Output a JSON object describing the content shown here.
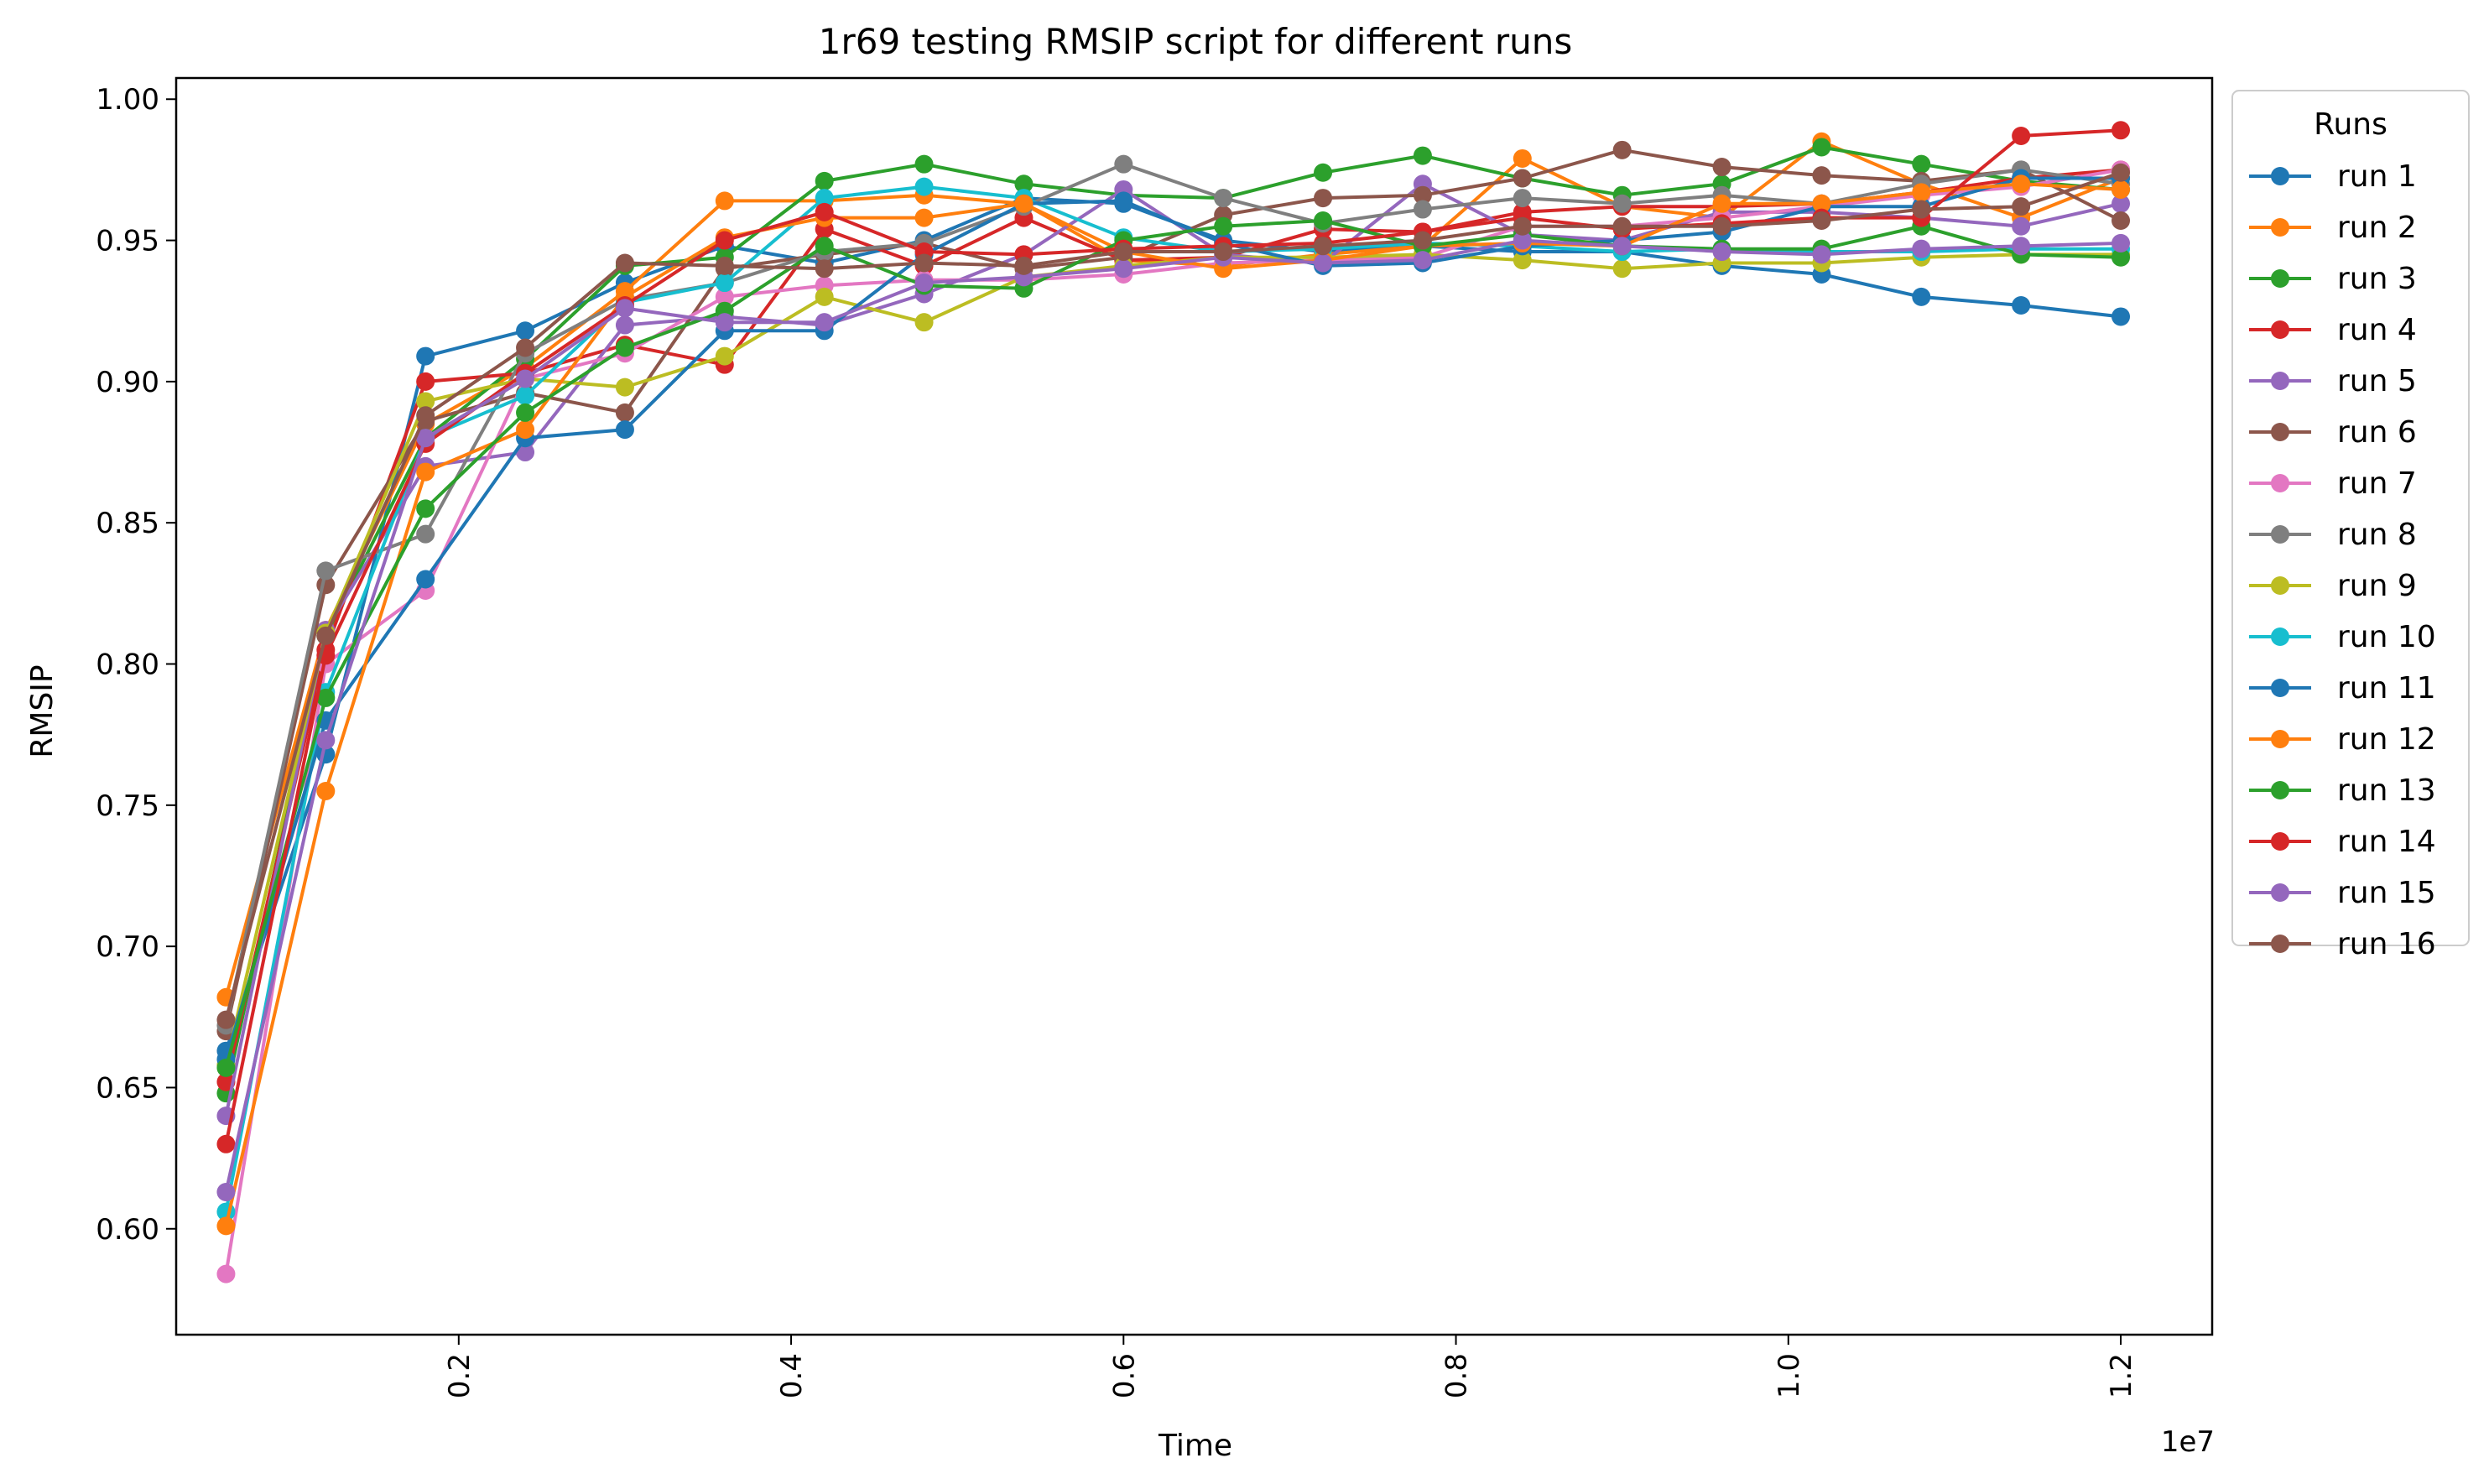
{
  "chart_data": {
    "type": "line",
    "title": "1r69 testing RMSIP script for different runs",
    "xlabel": "Time",
    "ylabel": "RMSIP",
    "x_offset_text": "1e7",
    "xlim": [
      0.03,
      1.255
    ],
    "ylim": [
      0.5625,
      1.0075
    ],
    "x_ticks": [
      0.2,
      0.4,
      0.6,
      0.8,
      1.0,
      1.2
    ],
    "x_tick_labels": [
      "0.2",
      "0.4",
      "0.6",
      "0.8",
      "1.0",
      "1.2"
    ],
    "y_ticks": [
      0.6,
      0.65,
      0.7,
      0.75,
      0.8,
      0.85,
      0.9,
      0.95,
      1.0
    ],
    "y_tick_labels": [
      "0.60",
      "0.65",
      "0.70",
      "0.75",
      "0.80",
      "0.85",
      "0.90",
      "0.95",
      "1.00"
    ],
    "x_tick_rotation": "vertical",
    "grid": false,
    "markers": "circle",
    "legend": {
      "title": "Runs",
      "placement": "outside-right"
    },
    "x": [
      0.06,
      0.12,
      0.18,
      0.24,
      0.3,
      0.36,
      0.42,
      0.48,
      0.54,
      0.6,
      0.66,
      0.72,
      0.78,
      0.84,
      0.9,
      0.96,
      1.02,
      1.08,
      1.14,
      1.2
    ],
    "series": [
      {
        "name": "run 1",
        "color": "#1f77b4",
        "values": [
          0.663,
          0.768,
          0.909,
          0.918,
          0.935,
          0.948,
          0.942,
          0.95,
          0.965,
          0.963,
          0.95,
          0.946,
          0.948,
          0.946,
          0.946,
          0.941,
          0.938,
          0.93,
          0.927,
          0.923
        ]
      },
      {
        "name": "run 2",
        "color": "#ff7f0e",
        "values": [
          0.682,
          0.812,
          0.885,
          0.905,
          0.932,
          0.964,
          0.964,
          0.966,
          0.963,
          0.943,
          0.941,
          0.945,
          0.948,
          0.979,
          0.962,
          0.958,
          0.985,
          0.97,
          0.958,
          0.972
        ]
      },
      {
        "name": "run 3",
        "color": "#2ca02c",
        "values": [
          0.648,
          0.81,
          0.88,
          0.908,
          0.941,
          0.944,
          0.971,
          0.977,
          0.97,
          0.966,
          0.965,
          0.974,
          0.98,
          0.972,
          0.966,
          0.97,
          0.983,
          0.977,
          0.971,
          0.968
        ]
      },
      {
        "name": "run 4",
        "color": "#d62728",
        "values": [
          0.652,
          0.805,
          0.9,
          0.903,
          0.913,
          0.906,
          0.954,
          0.941,
          0.958,
          0.943,
          0.944,
          0.954,
          0.953,
          0.96,
          0.962,
          0.962,
          0.963,
          0.967,
          0.972,
          0.975
        ]
      },
      {
        "name": "run 5",
        "color": "#9467bd",
        "values": [
          0.64,
          0.812,
          0.87,
          0.875,
          0.92,
          0.923,
          0.92,
          0.931,
          0.945,
          0.968,
          0.945,
          0.942,
          0.97,
          0.952,
          0.95,
          0.96,
          0.96,
          0.958,
          0.955,
          0.963
        ]
      },
      {
        "name": "run 6",
        "color": "#8c564b",
        "values": [
          0.67,
          0.828,
          0.886,
          0.896,
          0.889,
          0.94,
          0.945,
          0.949,
          0.94,
          0.944,
          0.959,
          0.965,
          0.966,
          0.972,
          0.982,
          0.976,
          0.973,
          0.971,
          0.975,
          0.957
        ]
      },
      {
        "name": "run 7",
        "color": "#e377c2",
        "values": [
          0.584,
          0.8,
          0.826,
          0.901,
          0.91,
          0.93,
          0.934,
          0.936,
          0.936,
          0.938,
          0.942,
          0.943,
          0.944,
          0.955,
          0.955,
          0.958,
          0.962,
          0.966,
          0.969,
          0.975
        ]
      },
      {
        "name": "run 8",
        "color": "#7f7f7f",
        "values": [
          0.672,
          0.833,
          0.846,
          0.91,
          0.929,
          0.935,
          0.946,
          0.949,
          0.962,
          0.977,
          0.965,
          0.956,
          0.961,
          0.965,
          0.963,
          0.966,
          0.963,
          0.97,
          0.975,
          0.97
        ]
      },
      {
        "name": "run 9",
        "color": "#bcbd22",
        "values": [
          0.658,
          0.811,
          0.893,
          0.901,
          0.898,
          0.909,
          0.93,
          0.921,
          0.937,
          0.941,
          0.944,
          0.944,
          0.945,
          0.943,
          0.94,
          0.942,
          0.942,
          0.944,
          0.945,
          0.945
        ]
      },
      {
        "name": "run 10",
        "color": "#17becf",
        "values": [
          0.606,
          0.79,
          0.88,
          0.895,
          0.928,
          0.935,
          0.965,
          0.969,
          0.965,
          0.951,
          0.946,
          0.947,
          0.949,
          0.948,
          0.946,
          0.947,
          0.946,
          0.946,
          0.947,
          0.947
        ]
      },
      {
        "name": "run 11",
        "color": "#1f77b4",
        "values": [
          0.66,
          0.78,
          0.83,
          0.88,
          0.883,
          0.918,
          0.918,
          0.945,
          0.963,
          0.964,
          0.949,
          0.941,
          0.942,
          0.948,
          0.95,
          0.953,
          0.962,
          0.962,
          0.972,
          0.972
        ]
      },
      {
        "name": "run 12",
        "color": "#ff7f0e",
        "values": [
          0.601,
          0.755,
          0.868,
          0.883,
          0.93,
          0.951,
          0.958,
          0.958,
          0.963,
          0.946,
          0.94,
          0.943,
          0.948,
          0.949,
          0.948,
          0.963,
          0.963,
          0.967,
          0.97,
          0.968
        ]
      },
      {
        "name": "run 13",
        "color": "#2ca02c",
        "values": [
          0.657,
          0.788,
          0.855,
          0.889,
          0.912,
          0.925,
          0.948,
          0.934,
          0.933,
          0.95,
          0.955,
          0.957,
          0.948,
          0.952,
          0.948,
          0.947,
          0.947,
          0.955,
          0.945,
          0.944
        ]
      },
      {
        "name": "run 14",
        "color": "#d62728",
        "values": [
          0.63,
          0.803,
          0.878,
          0.903,
          0.927,
          0.95,
          0.96,
          0.946,
          0.945,
          0.947,
          0.948,
          0.949,
          0.953,
          0.958,
          0.954,
          0.956,
          0.958,
          0.958,
          0.987,
          0.989
        ]
      },
      {
        "name": "run 15",
        "color": "#9467bd",
        "values": [
          0.613,
          0.773,
          0.88,
          0.901,
          0.926,
          0.921,
          0.921,
          0.935,
          0.937,
          0.94,
          0.944,
          0.942,
          0.943,
          0.95,
          0.948,
          0.946,
          0.945,
          0.947,
          0.948,
          0.949
        ]
      },
      {
        "name": "run 16",
        "color": "#8c564b",
        "values": [
          0.674,
          0.81,
          0.888,
          0.912,
          0.942,
          0.941,
          0.94,
          0.942,
          0.941,
          0.946,
          0.946,
          0.948,
          0.95,
          0.955,
          0.955,
          0.955,
          0.957,
          0.961,
          0.962,
          0.974
        ]
      }
    ]
  }
}
